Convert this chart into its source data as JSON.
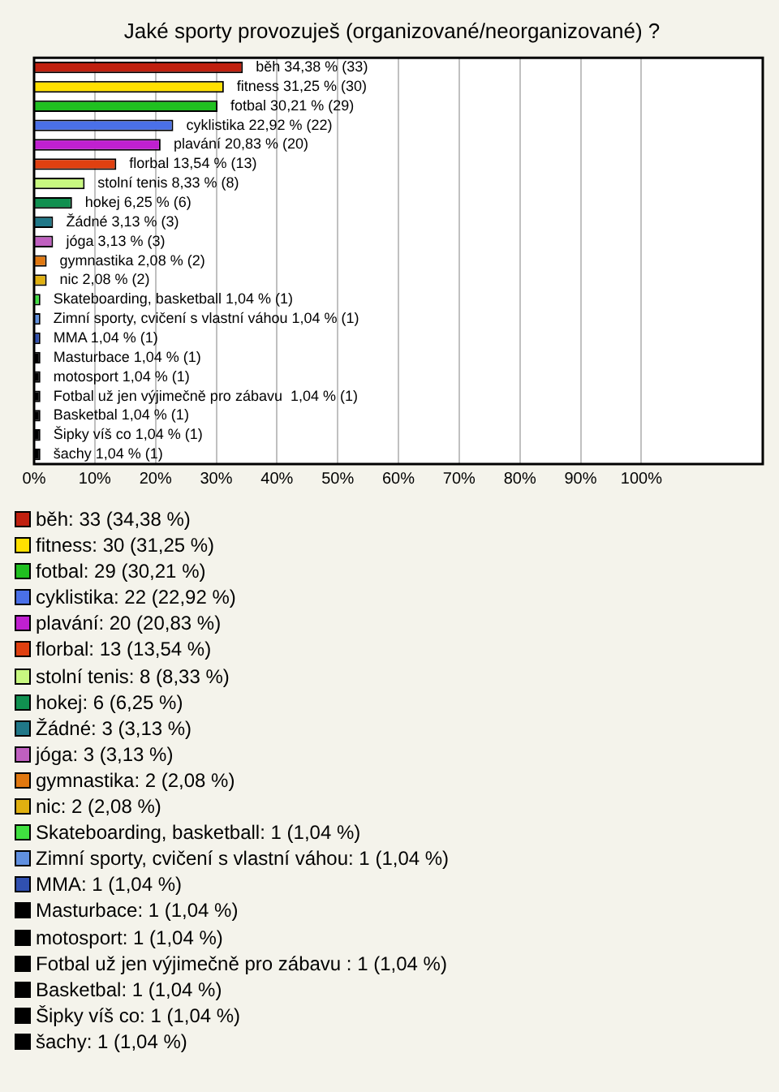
{
  "chart_data": {
    "type": "bar",
    "orientation": "horizontal",
    "title": "Jaké sporty provozuješ (organizované/neorganizované) ?",
    "categories": [
      null,
      null,
      null,
      null,
      null,
      null,
      null,
      null,
      null,
      null,
      null,
      null,
      null,
      null,
      null,
      null,
      null,
      null,
      null,
      null,
      null
    ],
    "values": [
      34.38,
      31.25,
      30.21,
      22.92,
      20.83,
      13.54,
      8.33,
      6.25,
      3.13,
      3.13,
      2.08,
      2.08,
      1.04,
      1.04,
      1.04,
      1.04,
      1.04,
      1.04,
      1.04,
      1.04,
      1.04
    ],
    "colors": [
      "#c0200f",
      "#ffe000",
      "#20c020",
      "#4a70e8",
      "#c020d0",
      "#e04010",
      "#c8f880",
      "#109050",
      "#207888",
      "#c060c0",
      "#e07810",
      "#e0b010",
      "#40e040",
      "#6090e0",
      "#3050b0",
      "#000000",
      "#000000",
      "#000000",
      "#000000",
      "#000000",
      "#000000"
    ],
    "value_labels": [
      "běh 34,38 % (33)",
      "fitness 31,25 % (30)",
      "fotbal 30,21 % (29)",
      "cyklistika 22,92 % (22)",
      "plavání 20,83 % (20)",
      "florbal 13,54 % (13)",
      "stolní tenis 8,33 % (8)",
      "hokej 6,25 % (6)",
      "Žádné 3,13 % (3)",
      "jóga 3,13 % (3)",
      "gymnastika 2,08 % (2)",
      "nic 2,08 % (2)",
      "Skateboarding, basketball 1,04 % (1)",
      "Zimní sporty, cvičení s vlastní váhou 1,04 % (1)",
      "MMA 1,04 % (1)",
      "Masturbace 1,04 % (1)",
      "motosport 1,04 % (1)",
      "Fotbal už jen výjimečně pro zábavu  1,04 % (1)",
      "Basketbal 1,04 % (1)",
      "Šipky víš co 1,04 % (1)",
      "šachy 1,04 % (1)"
    ],
    "annotations": [
      "běh: 33 (34,38 %)",
      "fitness: 30 (31,25 %)",
      "fotbal: 29 (30,21 %)",
      "cyklistika: 22 (22,92 %)",
      "plavání: 20 (20,83 %)",
      "florbal: 13 (13,54 %)",
      "stolní tenis: 8 (8,33 %)",
      "hokej: 6 (6,25 %)",
      "Žádné: 3 (3,13 %)",
      "jóga: 3 (3,13 %)",
      "gymnastika: 2 (2,08 %)",
      "nic: 2 (2,08 %)",
      "Skateboarding, basketball: 1 (1,04 %)",
      "Zimní sporty, cvičení s vlastní váhou: 1 (1,04 %)",
      "MMA: 1 (1,04 %)",
      "Masturbace: 1 (1,04 %)",
      "motosport: 1 (1,04 %)",
      "Fotbal už jen výjimečně pro zábavu : 1 (1,04 %)",
      "Basketbal: 1 (1,04 %)",
      "Šipky víš co: 1 (1,04 %)",
      "šachy: 1 (1,04 %)"
    ],
    "xlim": [
      0,
      120
    ],
    "xticks": [
      {
        "value": 0,
        "label": "0%"
      },
      {
        "value": 10,
        "label": "10%"
      },
      {
        "value": 20,
        "label": "20%"
      },
      {
        "value": 30,
        "label": "30%"
      },
      {
        "value": 40,
        "label": "40%"
      },
      {
        "value": 50,
        "label": "50%"
      },
      {
        "value": 60,
        "label": "60%"
      },
      {
        "value": 70,
        "label": "70%"
      },
      {
        "value": 80,
        "label": "80%"
      },
      {
        "value": 90,
        "label": "90%"
      },
      {
        "value": 100,
        "label": "100%"
      }
    ],
    "grid": "x",
    "tick_labels": "x"
  }
}
